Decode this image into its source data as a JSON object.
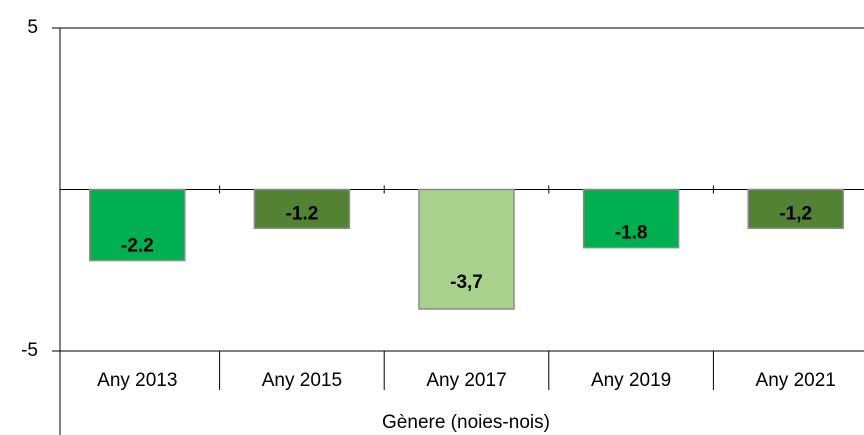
{
  "chart_data": {
    "type": "bar",
    "categories": [
      "Any 2013",
      "Any 2015",
      "Any 2017",
      "Any 2019",
      "Any 2021"
    ],
    "values": [
      -2.2,
      -1.2,
      -3.7,
      -1.8,
      -1.2
    ],
    "value_labels": [
      "-2.2",
      "-1.2",
      "-3,7",
      "-1.8",
      "-1,2"
    ],
    "colors": [
      "#00b050",
      "#548235",
      "#a9d18e",
      "#00b050",
      "#548235"
    ],
    "x_label": "Gènere (noies-nois)",
    "ylim": [
      -5,
      5
    ],
    "yticks": [
      -5,
      5
    ]
  }
}
